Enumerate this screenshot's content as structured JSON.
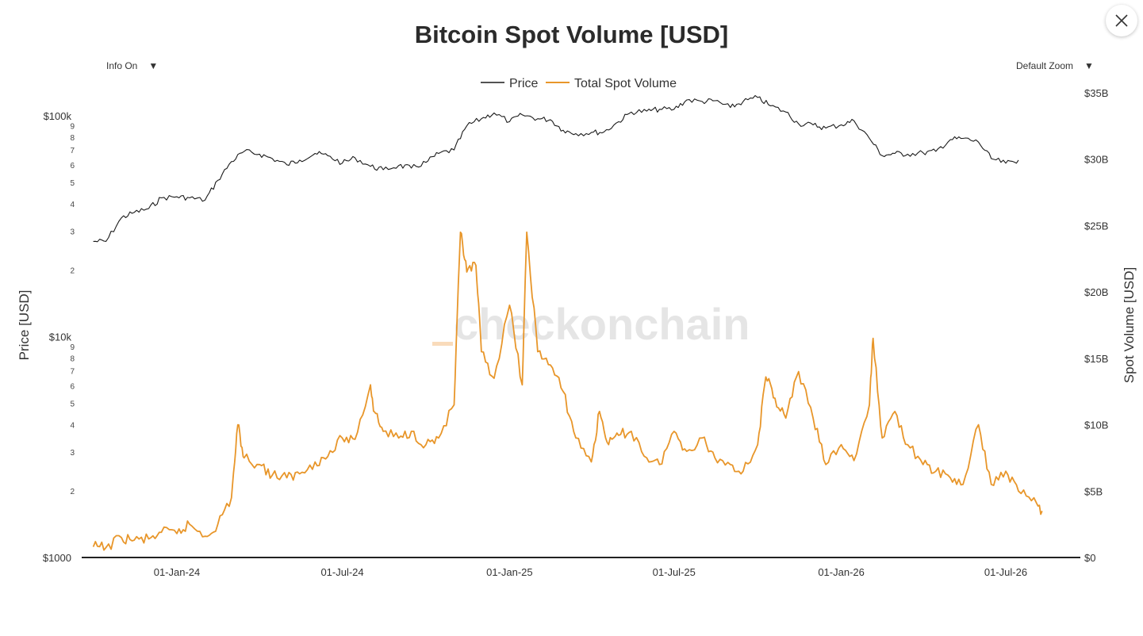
{
  "title": "Bitcoin Spot Volume [USD]",
  "menus": {
    "info_label": "Info On",
    "info_arrow": "▼",
    "zoom_label": "Default Zoom",
    "zoom_arrow": "▼"
  },
  "watermark": "checkonchain",
  "close_icon": "close-icon",
  "colors": {
    "price": "#1a1a1a",
    "volume": "#e8962a",
    "axis": "#222222"
  },
  "chart_data": {
    "type": "line",
    "title": "Bitcoin Spot Volume [USD]",
    "legend": {
      "placement": "top-center",
      "entries": [
        "Price",
        "Total Spot Volume"
      ]
    },
    "grid": false,
    "x_axis": {
      "type": "date",
      "range": [
        "2023-10-01",
        "2026-10-01"
      ],
      "ticks": [
        {
          "date": "2024-01-01",
          "label": "01-Jan-24"
        },
        {
          "date": "2024-07-01",
          "label": "01-Jul-24"
        },
        {
          "date": "2025-01-01",
          "label": "01-Jan-25"
        },
        {
          "date": "2025-07-01",
          "label": "01-Jul-25"
        },
        {
          "date": "2026-01-01",
          "label": "01-Jan-26"
        },
        {
          "date": "2026-07-01",
          "label": "01-Jul-26"
        }
      ]
    },
    "y_left": {
      "label": "Price [USD]",
      "scale": "log",
      "range": [
        1000,
        100000
      ],
      "major_ticks": [
        {
          "value": 100000,
          "label": "$100k"
        },
        {
          "value": 10000,
          "label": "$10k"
        },
        {
          "value": 1000,
          "label": "$1000"
        }
      ],
      "minor_ticks": [
        {
          "value": 90000,
          "label": "9"
        },
        {
          "value": 80000,
          "label": "8"
        },
        {
          "value": 70000,
          "label": "7"
        },
        {
          "value": 60000,
          "label": "6"
        },
        {
          "value": 50000,
          "label": "5"
        },
        {
          "value": 40000,
          "label": "4"
        },
        {
          "value": 30000,
          "label": "3"
        },
        {
          "value": 20000,
          "label": "2"
        },
        {
          "value": 9000,
          "label": "9"
        },
        {
          "value": 8000,
          "label": "8"
        },
        {
          "value": 7000,
          "label": "7"
        },
        {
          "value": 6000,
          "label": "6"
        },
        {
          "value": 5000,
          "label": "5"
        },
        {
          "value": 4000,
          "label": "4"
        },
        {
          "value": 3000,
          "label": "3"
        },
        {
          "value": 2000,
          "label": "2"
        }
      ]
    },
    "y_right": {
      "label": "Spot Volume [USD]",
      "scale": "linear",
      "range": [
        0,
        35000000000
      ],
      "ticks": [
        {
          "value": 0,
          "label": "$0"
        },
        {
          "value": 5000000000,
          "label": "$5B"
        },
        {
          "value": 10000000000,
          "label": "$10B"
        },
        {
          "value": 15000000000,
          "label": "$15B"
        },
        {
          "value": 20000000000,
          "label": "$20B"
        },
        {
          "value": 25000000000,
          "label": "$25B"
        },
        {
          "value": 30000000000,
          "label": "$30B"
        },
        {
          "value": 35000000000,
          "label": "$35B"
        }
      ]
    },
    "series": [
      {
        "name": "Price",
        "axis": "left",
        "x": [
          "2023-10-01",
          "2023-10-15",
          "2023-11-01",
          "2023-11-15",
          "2023-12-01",
          "2023-12-15",
          "2024-01-01",
          "2024-01-15",
          "2024-02-01",
          "2024-02-15",
          "2024-03-01",
          "2024-03-15",
          "2024-04-01",
          "2024-04-15",
          "2024-05-01",
          "2024-05-15",
          "2024-06-01",
          "2024-06-15",
          "2024-07-01",
          "2024-07-15",
          "2024-08-01",
          "2024-08-15",
          "2024-09-01",
          "2024-09-15",
          "2024-10-01",
          "2024-10-15",
          "2024-11-01",
          "2024-11-15",
          "2024-12-01",
          "2024-12-15",
          "2025-01-01",
          "2025-01-15",
          "2025-02-01",
          "2025-02-15",
          "2025-03-01",
          "2025-03-15",
          "2025-04-01",
          "2025-04-15",
          "2025-05-01",
          "2025-05-15",
          "2025-06-01",
          "2025-06-15",
          "2025-07-01",
          "2025-07-15",
          "2025-08-01",
          "2025-08-15",
          "2025-09-01",
          "2025-09-15",
          "2025-10-01",
          "2025-10-15",
          "2025-11-01",
          "2025-11-15",
          "2025-12-01",
          "2025-12-15",
          "2026-01-01",
          "2026-01-15",
          "2026-02-01",
          "2026-02-15",
          "2026-03-01",
          "2026-03-15",
          "2026-04-01",
          "2026-04-15",
          "2026-05-01",
          "2026-05-15",
          "2026-06-01",
          "2026-06-15",
          "2026-07-01",
          "2026-07-15"
        ],
        "values": [
          27000,
          27000,
          34500,
          36500,
          38000,
          42500,
          43000,
          42500,
          41500,
          51000,
          62000,
          69000,
          67000,
          64000,
          60000,
          63000,
          67500,
          66000,
          61000,
          64500,
          59000,
          57000,
          59500,
          58000,
          61500,
          67500,
          70000,
          90000,
          97000,
          103000,
          94000,
          101000,
          97000,
          96000,
          86000,
          83000,
          84000,
          84500,
          94000,
          104000,
          105000,
          107000,
          107000,
          118000,
          116000,
          117000,
          109000,
          116000,
          121000,
          111000,
          104000,
          92000,
          91000,
          88000,
          91000,
          95000,
          79000,
          66000,
          67500,
          67000,
          68000,
          69000,
          78000,
          79000,
          76000,
          64000,
          61000,
          63000
        ]
      },
      {
        "name": "Total Spot Volume",
        "axis": "right",
        "x": [
          "2023-10-01",
          "2023-10-15",
          "2023-11-01",
          "2023-11-15",
          "2023-12-01",
          "2023-12-15",
          "2024-01-01",
          "2024-01-15",
          "2024-02-01",
          "2024-02-15",
          "2024-03-01",
          "2024-03-08",
          "2024-03-15",
          "2024-04-01",
          "2024-04-15",
          "2024-05-01",
          "2024-05-15",
          "2024-06-01",
          "2024-06-15",
          "2024-07-01",
          "2024-07-15",
          "2024-08-01",
          "2024-08-05",
          "2024-08-15",
          "2024-09-01",
          "2024-09-15",
          "2024-10-01",
          "2024-10-15",
          "2024-11-01",
          "2024-11-08",
          "2024-11-15",
          "2024-11-25",
          "2024-12-01",
          "2024-12-15",
          "2025-01-01",
          "2025-01-15",
          "2025-01-20",
          "2025-02-01",
          "2025-02-15",
          "2025-03-01",
          "2025-03-15",
          "2025-04-01",
          "2025-04-10",
          "2025-04-20",
          "2025-05-01",
          "2025-05-15",
          "2025-06-01",
          "2025-06-15",
          "2025-07-01",
          "2025-07-15",
          "2025-08-01",
          "2025-08-15",
          "2025-09-01",
          "2025-09-15",
          "2025-10-01",
          "2025-10-10",
          "2025-10-20",
          "2025-11-01",
          "2025-11-15",
          "2025-12-01",
          "2025-12-15",
          "2026-01-01",
          "2026-01-15",
          "2026-02-01",
          "2026-02-05",
          "2026-02-15",
          "2026-03-01",
          "2026-03-15",
          "2026-04-01",
          "2026-04-15",
          "2026-05-01",
          "2026-05-15",
          "2026-06-01",
          "2026-06-15",
          "2026-07-01",
          "2026-07-15",
          "2026-08-01",
          "2026-08-10"
        ],
        "values": [
          800000000,
          750000000,
          1500000000,
          1300000000,
          1400000000,
          1900000000,
          1800000000,
          2500000000,
          1600000000,
          2500000000,
          4500000000,
          10000000000,
          7500000000,
          7000000000,
          6200000000,
          6000000000,
          6300000000,
          7200000000,
          7600000000,
          9000000000,
          8900000000,
          13000000000,
          11000000000,
          9500000000,
          9000000000,
          9500000000,
          8500000000,
          9000000000,
          11500000000,
          24500000000,
          21500000000,
          22000000000,
          15500000000,
          13500000000,
          19000000000,
          13000000000,
          24500000000,
          15500000000,
          14500000000,
          12500000000,
          9000000000,
          7200000000,
          11000000000,
          8500000000,
          9200000000,
          9500000000,
          7500000000,
          7000000000,
          9500000000,
          8000000000,
          9000000000,
          7500000000,
          7000000000,
          6500000000,
          8500000000,
          13600000000,
          12000000000,
          10500000000,
          14000000000,
          10500000000,
          7000000000,
          8500000000,
          7300000000,
          11500000000,
          16500000000,
          9000000000,
          11000000000,
          8500000000,
          7000000000,
          6500000000,
          6000000000,
          5500000000,
          10000000000,
          5500000000,
          6500000000,
          5000000000,
          4500000000,
          3500000000
        ]
      }
    ]
  }
}
